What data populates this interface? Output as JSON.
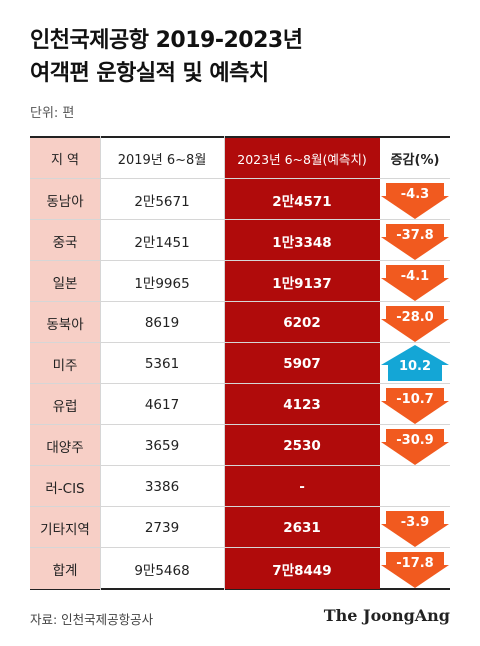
{
  "title_line1": "인천국제공항 2019-2023년",
  "title_line2": "여객편 운항실적 및 예측치",
  "unit": "단위: 편",
  "source": "자료: 인천국제공항공사",
  "logo": "The JoongAng",
  "colors": {
    "region_bg": "#f7cfc6",
    "col2023_bg": "#b00b0b",
    "decrease_arrow": "#f15a1f",
    "increase_arrow": "#14a6d6"
  },
  "chart_data": {
    "type": "table",
    "columns": [
      "지 역",
      "2019년 6~8월",
      "2023년 6~8월(예측치)",
      "증감(%)"
    ],
    "rows": [
      {
        "region": "동남아",
        "y2019": "2만5671",
        "y2023": "2만4571",
        "change": "-4.3",
        "direction": "down"
      },
      {
        "region": "중국",
        "y2019": "2만1451",
        "y2023": "1만3348",
        "change": "-37.8",
        "direction": "down"
      },
      {
        "region": "일본",
        "y2019": "1만9965",
        "y2023": "1만9137",
        "change": "-4.1",
        "direction": "down"
      },
      {
        "region": "동북아",
        "y2019": "8619",
        "y2023": "6202",
        "change": "-28.0",
        "direction": "down"
      },
      {
        "region": "미주",
        "y2019": "5361",
        "y2023": "5907",
        "change": "10.2",
        "direction": "up"
      },
      {
        "region": "유럽",
        "y2019": "4617",
        "y2023": "4123",
        "change": "-10.7",
        "direction": "down"
      },
      {
        "region": "대양주",
        "y2019": "3659",
        "y2023": "2530",
        "change": "-30.9",
        "direction": "down"
      },
      {
        "region": "러-CIS",
        "y2019": "3386",
        "y2023": "-",
        "change": "",
        "direction": "none"
      },
      {
        "region": "기타지역",
        "y2019": "2739",
        "y2023": "2631",
        "change": "-3.9",
        "direction": "down"
      },
      {
        "region": "합계",
        "y2019": "9만5468",
        "y2023": "7만8449",
        "change": "-17.8",
        "direction": "down"
      }
    ]
  }
}
